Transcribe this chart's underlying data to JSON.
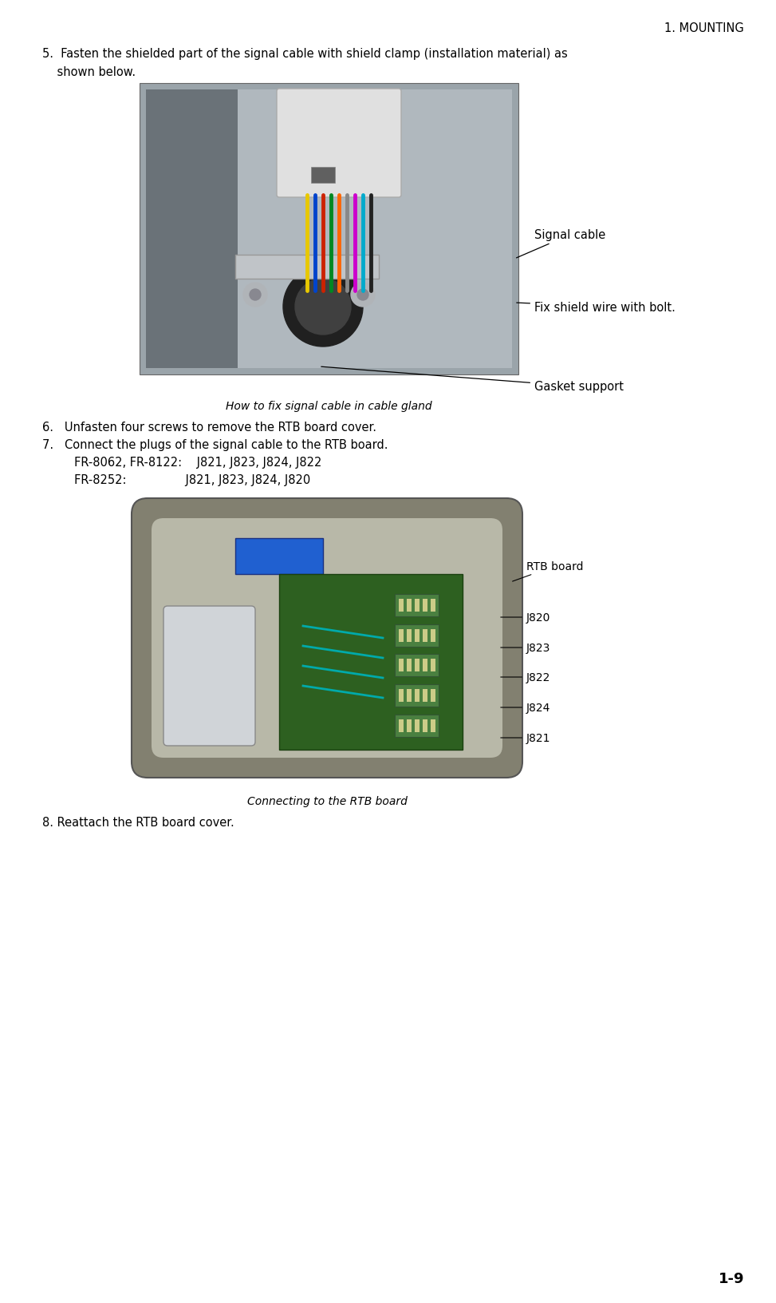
{
  "bg_color": "#ffffff",
  "page_width": 9.73,
  "page_height": 16.33,
  "dpi": 100,
  "text_color": "#000000",
  "header_text": "1. MOUNTING",
  "footer_text": "1-9",
  "step5_line1": "5.  Fasten the shielded part of the signal cable with shield clamp (installation material) as",
  "step5_line2": "    shown below.",
  "caption1": "How to fix signal cable in cable gland",
  "step6_text": "6.   Unfasten four screws to remove the RTB board cover.",
  "step7_text": "7.   Connect the plugs of the signal cable to the RTB board.",
  "step7_fr8062": "     FR-8062, FR-8122:    J821, J823, J824, J822",
  "step7_fr8252": "     FR-8252:                J821, J823, J824, J820",
  "caption2": "Connecting to the RTB board",
  "step8_text": "8. Reattach the RTB board cover.",
  "label_signal_cable": "Signal cable",
  "label_fix_shield": "Fix shield wire with bolt.",
  "label_gasket": "Gasket support",
  "label_rtb_board": "RTB board",
  "label_j820": "J820",
  "label_j823": "J823",
  "label_j822": "J822",
  "label_j824": "J824",
  "label_j821": "J821",
  "font_size_body": 10.5,
  "font_size_header": 10.5,
  "font_size_caption": 10,
  "font_size_footer": 13,
  "img1_color_bg": "#9aa4aa",
  "img1_color_panel": "#7a8890",
  "img2_color_bg": "#8a8c80",
  "img2_color_panel": "#6a7068"
}
